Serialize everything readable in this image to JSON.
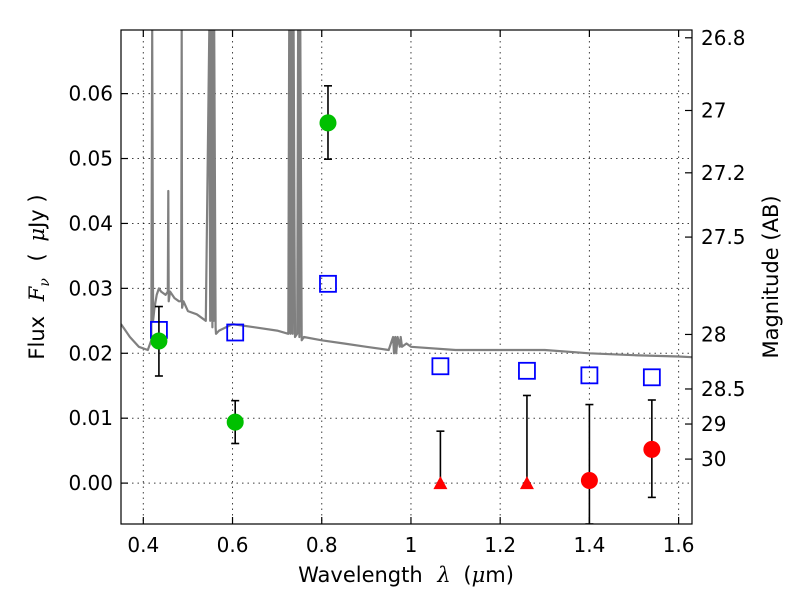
{
  "chart_data": {
    "type": "scatter",
    "xlabel_parts": [
      "Wavelength",
      "λ",
      "(",
      "μ",
      "m)"
    ],
    "ylabel_parts": [
      "Flux",
      "F",
      "ν",
      "(",
      "μ",
      "Jy )"
    ],
    "y2label": "Magnitude (AB)",
    "xlim": [
      0.35,
      1.63
    ],
    "ylim": [
      -0.0063,
      0.0698
    ],
    "x_ticks": [
      0.4,
      0.6,
      0.8,
      1.0,
      1.2,
      1.4,
      1.6
    ],
    "x_tick_labels": [
      "0.4",
      "0.6",
      "0.8",
      "1",
      "1.2",
      "1.4",
      "1.6"
    ],
    "y_ticks": [
      0.0,
      0.01,
      0.02,
      0.03,
      0.04,
      0.05,
      0.06
    ],
    "y_tick_labels": [
      "0.00",
      "0.01",
      "0.02",
      "0.03",
      "0.04",
      "0.05",
      "0.06"
    ],
    "y2_ticks": [
      {
        "flux": 0.0686,
        "label": "26.8"
      },
      {
        "flux": 0.0574,
        "label": "27"
      },
      {
        "flux": 0.0478,
        "label": "27.2"
      },
      {
        "flux": 0.0379,
        "label": "27.5"
      },
      {
        "flux": 0.0229,
        "label": "28"
      },
      {
        "flux": 0.0145,
        "label": "28.5"
      },
      {
        "flux": 0.0091,
        "label": "29"
      },
      {
        "flux": 0.0037,
        "label": "30"
      }
    ],
    "grid": true,
    "colors": {
      "model": "#808080",
      "model_photometry": "#0000ff",
      "detection": "#00c000",
      "nondetection": "#ff0000",
      "errorbar": "#000000"
    },
    "model_spectrum": {
      "x": [
        0.35,
        0.37,
        0.39,
        0.41,
        0.418,
        0.42,
        0.422,
        0.425,
        0.43,
        0.435,
        0.44,
        0.45,
        0.455,
        0.456,
        0.457,
        0.46,
        0.47,
        0.48,
        0.485,
        0.486,
        0.487,
        0.49,
        0.5,
        0.52,
        0.54,
        0.548,
        0.55,
        0.551,
        0.555,
        0.556,
        0.558,
        0.559,
        0.562,
        0.563,
        0.57,
        0.6,
        0.65,
        0.7,
        0.725,
        0.727,
        0.73,
        0.732,
        0.735,
        0.737,
        0.74,
        0.745,
        0.747,
        0.75,
        0.752,
        0.755,
        0.76,
        0.8,
        0.85,
        0.9,
        0.95,
        0.96,
        0.962,
        0.965,
        0.967,
        0.97,
        0.975,
        0.977,
        0.98,
        0.99,
        1.0,
        1.1,
        1.2,
        1.3,
        1.4,
        1.5,
        1.6,
        1.63
      ],
      "y": [
        0.0245,
        0.0225,
        0.021,
        0.0205,
        0.022,
        0.0698,
        0.025,
        0.027,
        0.029,
        0.03,
        0.0295,
        0.029,
        0.0295,
        0.045,
        0.028,
        0.0295,
        0.0285,
        0.028,
        0.028,
        0.0698,
        0.027,
        0.028,
        0.0265,
        0.026,
        0.025,
        0.0698,
        0.025,
        0.0698,
        0.024,
        0.0698,
        0.025,
        0.0698,
        0.024,
        0.023,
        0.0235,
        0.0245,
        0.024,
        0.0235,
        0.023,
        0.0698,
        0.023,
        0.0698,
        0.023,
        0.0698,
        0.0225,
        0.023,
        0.0698,
        0.0225,
        0.0698,
        0.022,
        0.0225,
        0.022,
        0.0215,
        0.021,
        0.0205,
        0.0225,
        0.02,
        0.0225,
        0.02,
        0.0225,
        0.021,
        0.0225,
        0.021,
        0.0215,
        0.021,
        0.0205,
        0.0205,
        0.0205,
        0.02,
        0.0197,
        0.0195,
        0.0194
      ]
    },
    "model_photometry": [
      {
        "x": 0.435,
        "y": 0.0236
      },
      {
        "x": 0.606,
        "y": 0.0232
      },
      {
        "x": 0.814,
        "y": 0.0307
      },
      {
        "x": 1.066,
        "y": 0.018
      },
      {
        "x": 1.26,
        "y": 0.0173
      },
      {
        "x": 1.4,
        "y": 0.0166
      },
      {
        "x": 1.54,
        "y": 0.0163
      }
    ],
    "detections": [
      {
        "x": 0.435,
        "y": 0.0219,
        "err_low": 0.0054,
        "err_high": 0.0053
      },
      {
        "x": 0.606,
        "y": 0.0094,
        "err_low": 0.0033,
        "err_high": 0.0033
      },
      {
        "x": 0.814,
        "y": 0.0555,
        "err_low": 0.0056,
        "err_high": 0.0057
      }
    ],
    "upper_limits": [
      {
        "x": 1.066,
        "y": 0.0,
        "err_low": 0.0,
        "err_high": 0.008
      },
      {
        "x": 1.26,
        "y": 0.0,
        "err_low": 0.0,
        "err_high": 0.0135
      }
    ],
    "nondetections": [
      {
        "x": 1.4,
        "y": 0.0004,
        "err_low": 0.0067,
        "err_high": 0.0117
      },
      {
        "x": 1.54,
        "y": 0.0052,
        "err_low": 0.0074,
        "err_high": 0.0076
      }
    ]
  }
}
